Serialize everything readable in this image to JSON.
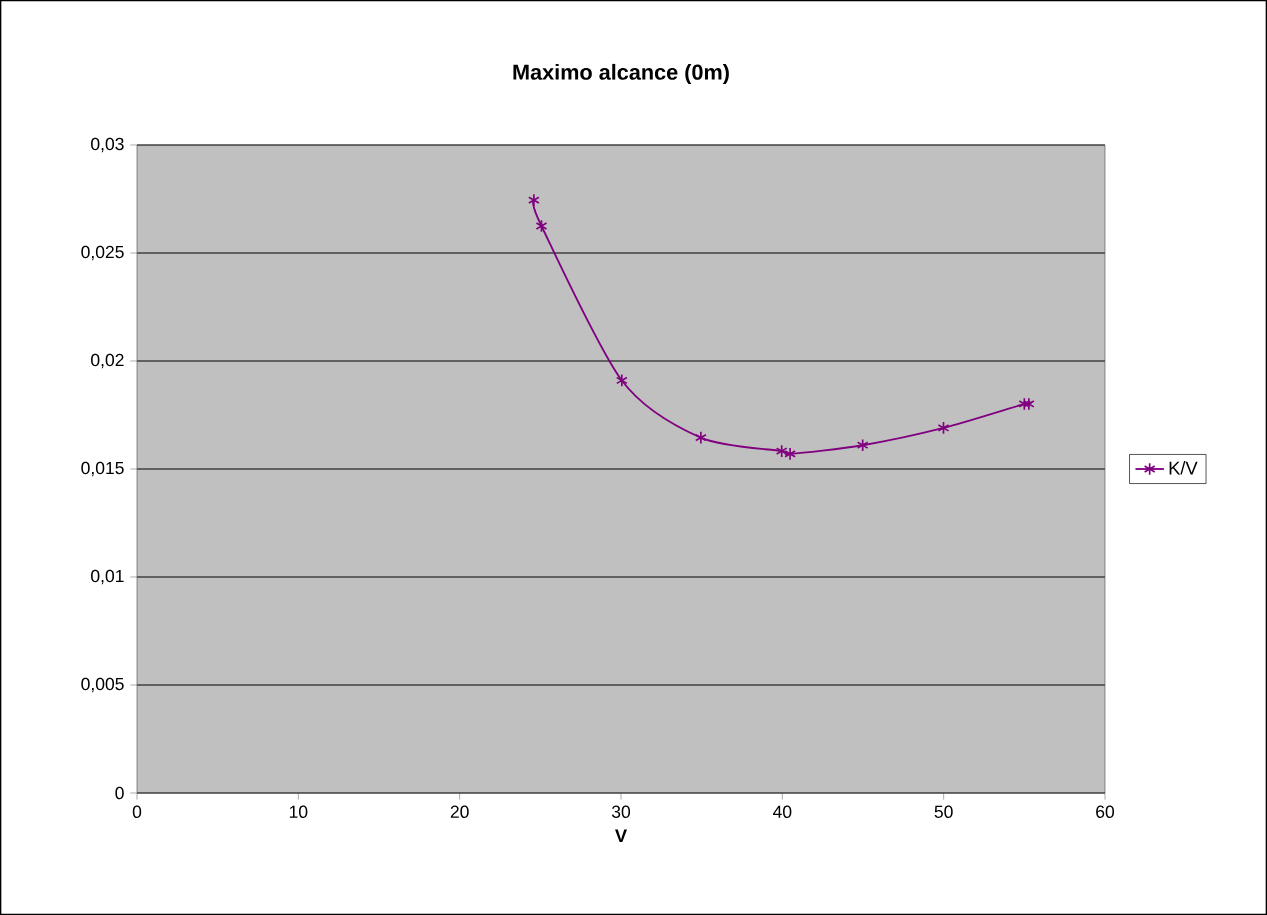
{
  "chart_data": {
    "type": "line",
    "title": "Maximo alcance (0m)",
    "xlabel": "V",
    "series": [
      {
        "name": "K/V",
        "color": "#800080",
        "x": [
          24.6,
          25.07,
          30.05,
          34.95,
          39.96,
          40.48,
          44.98,
          49.99,
          55.0,
          55.28
        ],
        "values": [
          0.02745,
          0.02625,
          0.0191,
          0.01645,
          0.01583,
          0.0157,
          0.0161,
          0.0169,
          0.01801,
          0.01801
        ]
      }
    ],
    "xlim": [
      0,
      60
    ],
    "ylim": [
      0,
      0.03
    ],
    "xticks": [
      0,
      10,
      20,
      30,
      40,
      50,
      60
    ],
    "yticks": [
      0,
      {
        "value": 0.005,
        "label": "0,005"
      },
      {
        "value": 0.01,
        "label": "0,01"
      },
      {
        "value": 0.015,
        "label": "0,015"
      },
      {
        "value": 0.02,
        "label": "0,02"
      },
      {
        "value": 0.025,
        "label": "0,025"
      },
      {
        "value": 0.03,
        "label": "0,03"
      }
    ],
    "grid": "y",
    "legend": "right",
    "marker": "cross",
    "line_style": "solid"
  }
}
